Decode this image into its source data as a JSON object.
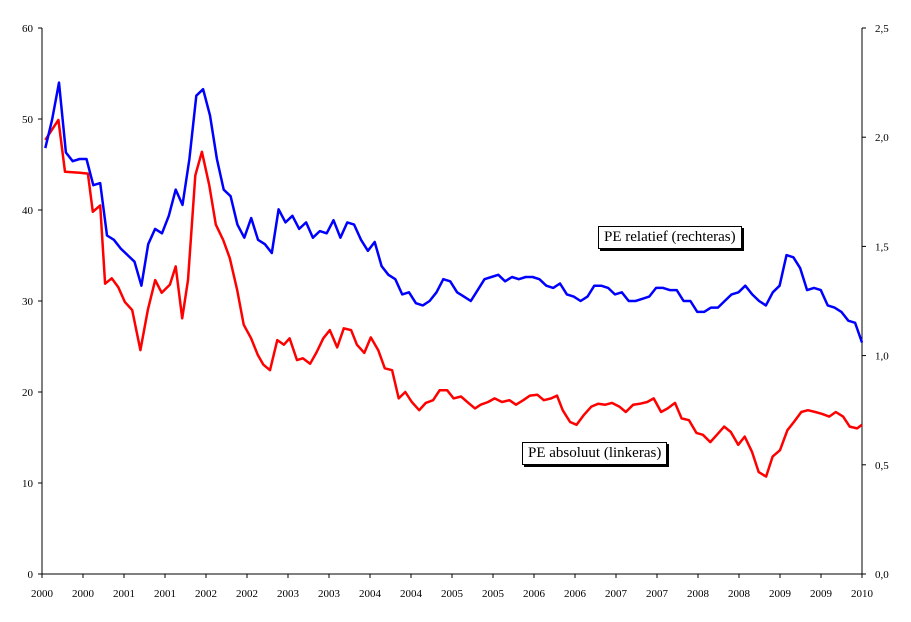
{
  "chart_data": {
    "type": "line",
    "title": "",
    "xlabel": "",
    "ylabel_left": "",
    "ylabel_right": "",
    "x_range": [
      2000,
      2010
    ],
    "x_tick_labels": [
      "2000",
      "2000",
      "2001",
      "2001",
      "2002",
      "2002",
      "2003",
      "2003",
      "2004",
      "2004",
      "2005",
      "2005",
      "2006",
      "2006",
      "2007",
      "2007",
      "2008",
      "2008",
      "2009",
      "2009",
      "2010"
    ],
    "left_axis": {
      "range": [
        0,
        60
      ],
      "ticks": [
        "0",
        "10",
        "20",
        "30",
        "40",
        "50",
        "60"
      ],
      "tick_values": [
        0,
        10,
        20,
        30,
        40,
        50,
        60
      ]
    },
    "right_axis": {
      "range": [
        0,
        2.5
      ],
      "ticks": [
        "0,0",
        "0,5",
        "1,0",
        "1,5",
        "2,0",
        "2,5"
      ],
      "tick_values": [
        0,
        0.5,
        1,
        1.5,
        2,
        2.5
      ]
    },
    "grid": false,
    "series": [
      {
        "name": "PE absoluut (linkeras)",
        "axis": "left",
        "color": "#ff0000",
        "x": [
          2000.04,
          2000.2,
          2000.28,
          2000.46,
          2000.56,
          2000.62,
          2000.71,
          2000.77,
          2000.85,
          2000.93,
          2001.01,
          2001.1,
          2001.2,
          2001.29,
          2001.38,
          2001.46,
          2001.56,
          2001.63,
          2001.71,
          2001.78,
          2001.87,
          2001.95,
          2002.04,
          2002.12,
          2002.21,
          2002.29,
          2002.38,
          2002.46,
          2002.55,
          2002.63,
          2002.7,
          2002.78,
          2002.87,
          2002.95,
          2003.02,
          2003.11,
          2003.18,
          2003.27,
          2003.35,
          2003.43,
          2003.51,
          2003.6,
          2003.68,
          2003.77,
          2003.84,
          2003.93,
          2004.01,
          2004.1,
          2004.18,
          2004.27,
          2004.35,
          2004.43,
          2004.51,
          2004.6,
          2004.68,
          2004.77,
          2004.85,
          2004.94,
          2005.02,
          2005.11,
          2005.2,
          2005.28,
          2005.35,
          2005.44,
          2005.52,
          2005.61,
          2005.7,
          2005.78,
          2005.87,
          2005.95,
          2006.04,
          2006.12,
          2006.21,
          2006.28,
          2006.35,
          2006.44,
          2006.52,
          2006.61,
          2006.7,
          2006.78,
          2006.87,
          2006.95,
          2007.04,
          2007.12,
          2007.21,
          2007.29,
          2007.38,
          2007.46,
          2007.55,
          2007.63,
          2007.72,
          2007.8,
          2007.89,
          2007.98,
          2008.06,
          2008.15,
          2008.23,
          2008.32,
          2008.4,
          2008.49,
          2008.57,
          2008.66,
          2008.74,
          2008.83,
          2008.91,
          2009.0,
          2009.09,
          2009.17,
          2009.26,
          2009.34,
          2009.43,
          2009.51,
          2009.6,
          2009.68,
          2009.77,
          2009.85,
          2009.94,
          2010.0
        ],
        "values": [
          47.7,
          49.9,
          44.2,
          44.1,
          44.0,
          39.8,
          40.5,
          31.9,
          32.5,
          31.5,
          29.9,
          29.0,
          24.6,
          29.0,
          32.3,
          30.9,
          31.8,
          33.8,
          28.1,
          32.3,
          43.8,
          46.4,
          42.7,
          38.4,
          36.7,
          34.7,
          31.2,
          27.4,
          25.9,
          24.1,
          23.0,
          22.4,
          25.7,
          25.2,
          25.9,
          23.5,
          23.7,
          23.1,
          24.4,
          25.9,
          26.8,
          24.9,
          27.0,
          26.8,
          25.2,
          24.3,
          26.0,
          24.6,
          22.6,
          22.4,
          19.3,
          20.0,
          18.9,
          18.0,
          18.8,
          19.1,
          20.2,
          20.2,
          19.3,
          19.5,
          18.8,
          18.2,
          18.6,
          18.9,
          19.3,
          18.9,
          19.1,
          18.6,
          19.1,
          19.6,
          19.7,
          19.1,
          19.3,
          19.6,
          18.0,
          16.7,
          16.4,
          17.5,
          18.4,
          18.7,
          18.6,
          18.8,
          18.4,
          17.8,
          18.6,
          18.7,
          18.9,
          19.3,
          17.8,
          18.2,
          18.8,
          17.1,
          16.9,
          15.5,
          15.3,
          14.5,
          15.3,
          16.2,
          15.6,
          14.2,
          15.1,
          13.4,
          11.2,
          10.7,
          12.9,
          13.6,
          15.8,
          16.7,
          17.8,
          18.0,
          17.8,
          17.6,
          17.3,
          17.8,
          17.3,
          16.2,
          16.0,
          16.4
        ]
      },
      {
        "name": "PE relatief (rechteras)",
        "axis": "right",
        "color": "#0000ff",
        "x_start": 2000.04,
        "x_end": 2010.0,
        "values": [
          1.95,
          2.08,
          2.25,
          1.93,
          1.89,
          1.9,
          1.9,
          1.78,
          1.79,
          1.55,
          1.53,
          1.49,
          1.46,
          1.43,
          1.32,
          1.51,
          1.58,
          1.56,
          1.64,
          1.76,
          1.69,
          1.9,
          2.19,
          2.22,
          2.1,
          1.9,
          1.76,
          1.73,
          1.6,
          1.54,
          1.63,
          1.53,
          1.51,
          1.47,
          1.67,
          1.61,
          1.64,
          1.58,
          1.61,
          1.54,
          1.57,
          1.56,
          1.62,
          1.54,
          1.61,
          1.6,
          1.53,
          1.48,
          1.52,
          1.41,
          1.37,
          1.35,
          1.28,
          1.29,
          1.24,
          1.23,
          1.25,
          1.29,
          1.35,
          1.34,
          1.29,
          1.27,
          1.25,
          1.3,
          1.35,
          1.36,
          1.37,
          1.34,
          1.36,
          1.35,
          1.36,
          1.36,
          1.35,
          1.32,
          1.31,
          1.33,
          1.28,
          1.27,
          1.25,
          1.27,
          1.32,
          1.32,
          1.31,
          1.28,
          1.29,
          1.25,
          1.25,
          1.26,
          1.27,
          1.31,
          1.31,
          1.3,
          1.3,
          1.25,
          1.25,
          1.2,
          1.2,
          1.22,
          1.22,
          1.25,
          1.28,
          1.29,
          1.32,
          1.28,
          1.25,
          1.23,
          1.29,
          1.32,
          1.46,
          1.45,
          1.4,
          1.3,
          1.31,
          1.3,
          1.23,
          1.22,
          1.2,
          1.16,
          1.15,
          1.06
        ]
      }
    ],
    "annotations": [
      "PE relatief (rechteras)",
      "PE absoluut (linkeras)"
    ]
  }
}
